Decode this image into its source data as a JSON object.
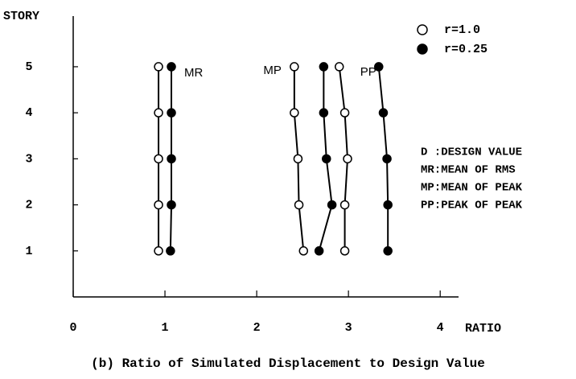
{
  "chart_data": {
    "type": "line",
    "ylabel": "STORY",
    "xlabel": "RATIO",
    "xlim": [
      0,
      4.2
    ],
    "ylim": [
      0,
      6.1
    ],
    "xticks": [
      0,
      1,
      2,
      3,
      4
    ],
    "yticks": [
      1,
      2,
      3,
      4,
      5
    ],
    "y": [
      1,
      2,
      3,
      4,
      5
    ],
    "legend": [
      {
        "name": "r=1.0",
        "marker": "open"
      },
      {
        "name": "r=0.25",
        "marker": "filled"
      }
    ],
    "groups": [
      {
        "label": "MR",
        "series": [
          [
            0.93,
            0.93,
            0.93,
            0.93,
            0.93
          ],
          [
            1.06,
            1.07,
            1.07,
            1.07,
            1.07
          ]
        ]
      },
      {
        "label": "MP",
        "series": [
          [
            2.51,
            2.46,
            2.45,
            2.41,
            2.41
          ],
          [
            2.68,
            2.82,
            2.76,
            2.73,
            2.73
          ]
        ]
      },
      {
        "label": "PP",
        "series": [
          [
            2.96,
            2.96,
            2.99,
            2.96,
            2.9
          ],
          [
            3.43,
            3.43,
            3.42,
            3.38,
            3.33
          ]
        ]
      }
    ],
    "notes": [
      "D :DESIGN VALUE",
      "MR:MEAN OF RMS",
      "MP:MEAN OF PEAK",
      "PP:PEAK OF PEAK"
    ],
    "caption": "(b) Ratio of Simulated Displacement to Design Value"
  }
}
